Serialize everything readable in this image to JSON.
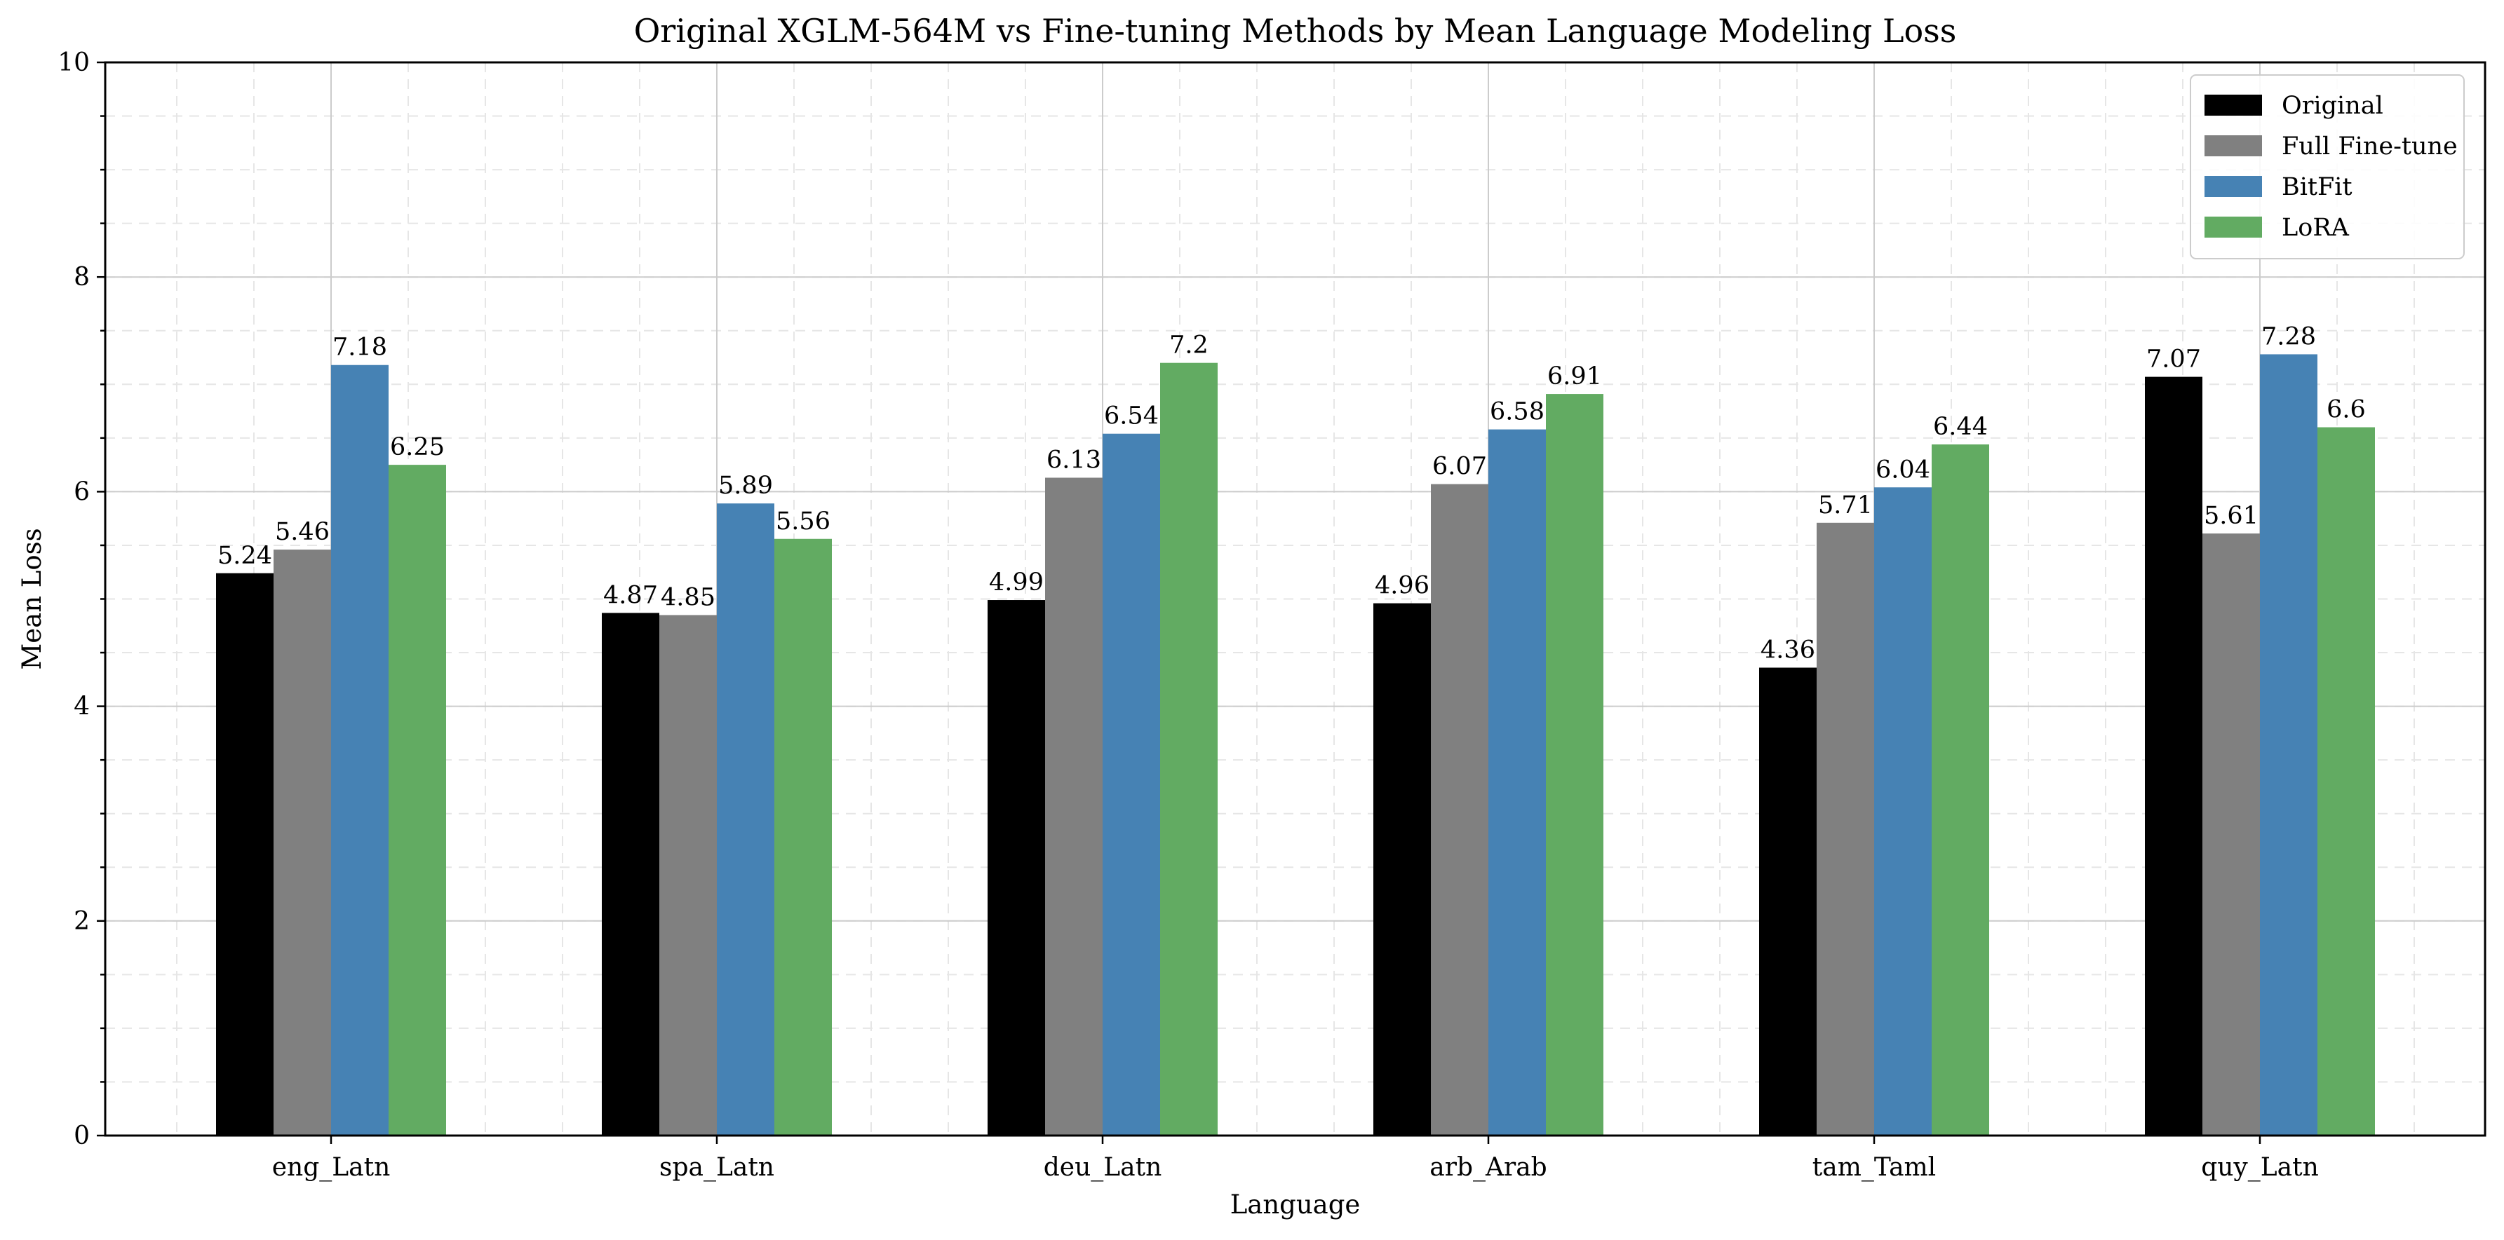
{
  "chart_data": {
    "type": "bar",
    "title": "Original XGLM-564M vs Fine-tuning Methods by Mean Language Modeling Loss",
    "xlabel": "Language",
    "ylabel": "Mean Loss",
    "categories": [
      "eng_Latn",
      "spa_Latn",
      "deu_Latn",
      "arb_Arab",
      "tam_Taml",
      "quy_Latn"
    ],
    "series": [
      {
        "name": "Original",
        "color": "#000000",
        "values": [
          5.24,
          4.87,
          4.99,
          4.96,
          4.36,
          7.07
        ]
      },
      {
        "name": "Full Fine-tune",
        "color": "#808080",
        "values": [
          5.46,
          4.85,
          6.13,
          6.07,
          5.71,
          5.61
        ]
      },
      {
        "name": "BitFit",
        "color": "#4682b4",
        "values": [
          7.18,
          5.89,
          6.54,
          6.58,
          6.04,
          7.28
        ]
      },
      {
        "name": "LoRA",
        "color": "#62ab62",
        "values": [
          6.25,
          5.56,
          7.2,
          6.91,
          6.44,
          6.6
        ]
      }
    ],
    "value_labels": [
      [
        "5.24",
        "4.87",
        "4.99",
        "4.96",
        "4.36",
        "7.07"
      ],
      [
        "5.46",
        "4.85",
        "6.13",
        "6.07",
        "5.71",
        "5.61"
      ],
      [
        "7.18",
        "5.89",
        "6.54",
        "6.58",
        "6.04",
        "7.28"
      ],
      [
        "6.25",
        "5.56",
        "7.2",
        "6.91",
        "6.44",
        "6.6"
      ]
    ],
    "ylim": [
      0,
      10
    ],
    "yticks": [
      0,
      2,
      4,
      6,
      8,
      10
    ],
    "ytick_labels": [
      "0",
      "2",
      "4",
      "6",
      "8",
      "10"
    ],
    "grid": true,
    "legend_position": "top-right"
  }
}
